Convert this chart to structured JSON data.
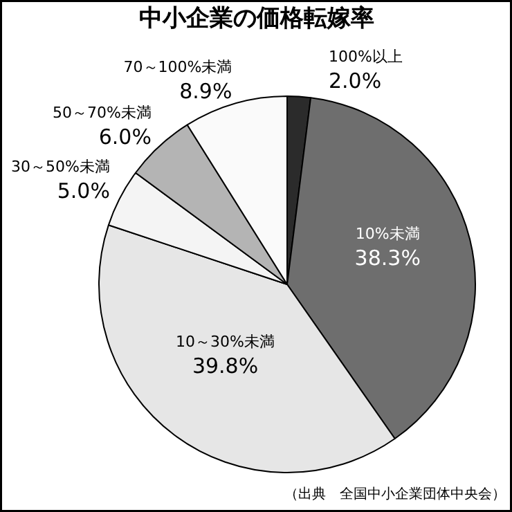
{
  "chart_data": {
    "type": "pie",
    "title": "中小企業の価格転嫁率",
    "categories": [
      "100%以上",
      "10%未満",
      "10～30%未満",
      "30～50%未満",
      "50～70%未満",
      "70～100%未満"
    ],
    "values": [
      2.0,
      38.3,
      39.8,
      5.0,
      6.0,
      8.9
    ],
    "value_labels": [
      "2.0%",
      "38.3%",
      "39.8%",
      "5.0%",
      "6.0%",
      "8.9%"
    ],
    "colors": [
      "#2b2b2b",
      "#6e6e6e",
      "#e6e6e6",
      "#f4f4f4",
      "#b4b4b4",
      "#fafafa"
    ],
    "annotations": [
      "（出典　全国中小企業団体中央会）"
    ]
  }
}
